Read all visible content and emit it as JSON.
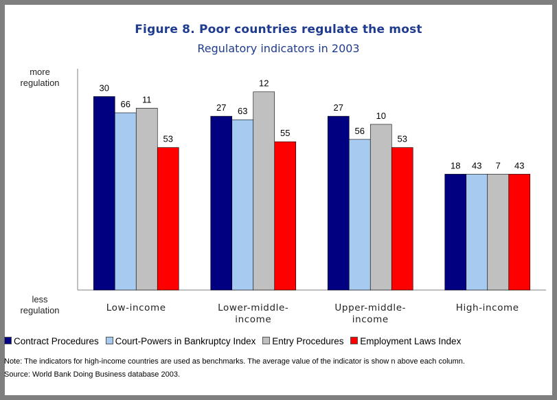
{
  "chart_data": {
    "type": "bar",
    "title": "Figure 8. Poor countries regulate the most",
    "subtitle": "Regulatory indicators in 2003",
    "y_top_label": "more regulation",
    "y_bottom_label": "less regulation",
    "categories": [
      "Low-income",
      "Lower-middle-income",
      "Upper-middle-income",
      "High-income"
    ],
    "category_display": [
      [
        "Low-income"
      ],
      [
        "Lower-middle-",
        "income"
      ],
      [
        "Upper-middle-",
        "income"
      ],
      [
        "High-income"
      ]
    ],
    "series": [
      {
        "name": "Contract Procedures",
        "color": "#000080",
        "values": [
          30,
          27,
          27,
          18
        ],
        "ratio_to_high_income": [
          1.67,
          1.5,
          1.5,
          1.0
        ]
      },
      {
        "name": "Court-Powers in Bankruptcy Index",
        "color": "#a6caf0",
        "values": [
          66,
          63,
          56,
          43
        ],
        "ratio_to_high_income": [
          1.53,
          1.47,
          1.3,
          1.0
        ]
      },
      {
        "name": "Entry Procedures",
        "color": "#c0c0c0",
        "values": [
          11,
          12,
          10,
          7
        ],
        "ratio_to_high_income": [
          1.57,
          1.71,
          1.43,
          1.0
        ]
      },
      {
        "name": "Employment Laws Index",
        "color": "#ff0000",
        "values": [
          53,
          55,
          53,
          43
        ],
        "ratio_to_high_income": [
          1.23,
          1.28,
          1.23,
          1.0
        ]
      }
    ],
    "ylim": [
      0,
      1.91
    ],
    "grid": false,
    "legend_position": "bottom"
  },
  "note": "Note: The indicators for high-income countries are used as benchmarks. The average value of the indicator is show n above each column.",
  "source": "Source: World Bank Doing Business database 2003."
}
